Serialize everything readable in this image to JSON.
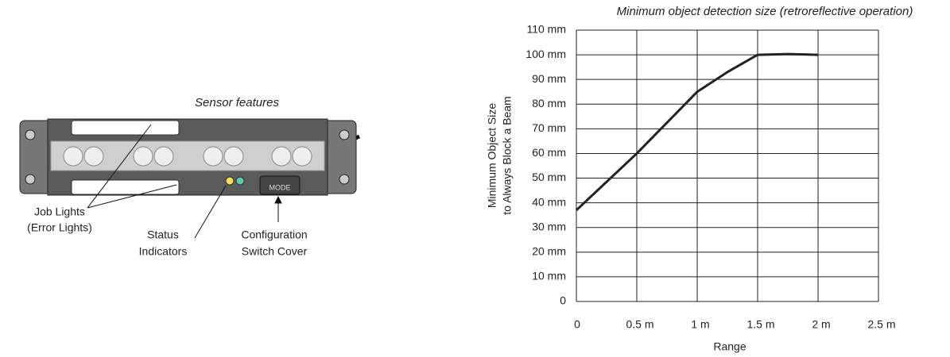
{
  "diagram": {
    "title": "Sensor features",
    "job_lights": [
      "Job Lights",
      "(Error Lights)"
    ],
    "status_indicators": [
      "Status",
      "Indicators"
    ],
    "switch_cover": [
      "Configuration",
      "Switch Cover"
    ],
    "mode_label": "MODE"
  },
  "chart_data": {
    "type": "line",
    "title": "Minimum object detection size (retroreflective operation)",
    "y_label": [
      "Minimum Object Size",
      "to Always Block a Beam"
    ],
    "x_label": "Range",
    "x": [
      0,
      0.5,
      1,
      1.25,
      1.5,
      1.75,
      2
    ],
    "series": [
      {
        "color": "#222222",
        "values": [
          37,
          60,
          85,
          93,
          100,
          100.3,
          100
        ]
      }
    ],
    "xlim": [
      0,
      2.5
    ],
    "xticks": [
      0,
      {
        "value": 0.5,
        "label": "0.5 m"
      },
      {
        "value": 1,
        "label": "1 m"
      },
      {
        "value": 1.5,
        "label": "1.5 m"
      },
      {
        "value": 2,
        "label": "2 m"
      },
      {
        "value": 2.5,
        "label": "2.5 m"
      }
    ],
    "ylim": [
      0,
      110
    ],
    "yticks": [
      0,
      {
        "value": 10,
        "label": "10 mm"
      },
      {
        "value": 20,
        "label": "20 mm"
      },
      {
        "value": 30,
        "label": "30 mm"
      },
      {
        "value": 40,
        "label": "40 mm"
      },
      {
        "value": 50,
        "label": "50 mm"
      },
      {
        "value": 60,
        "label": "60 mm"
      },
      {
        "value": 70,
        "label": "70 mm"
      },
      {
        "value": 80,
        "label": "80 mm"
      },
      {
        "value": 90,
        "label": "90 mm"
      },
      {
        "value": 100,
        "label": "100 mm"
      },
      {
        "value": 110,
        "label": "110 mm"
      }
    ],
    "grid": true
  }
}
